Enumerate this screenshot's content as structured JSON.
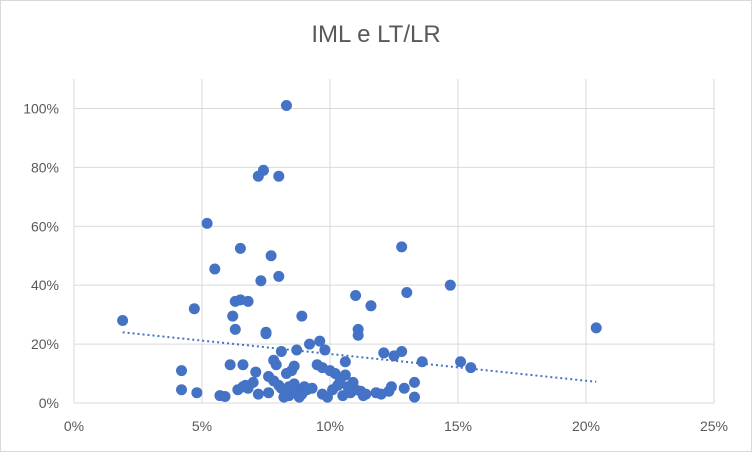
{
  "chart_data": {
    "type": "scatter",
    "title": "IML e LT/LR",
    "xlabel": "",
    "ylabel": "",
    "xlim": [
      0,
      0.25
    ],
    "ylim": [
      0,
      1.1
    ],
    "grid": {
      "x": true,
      "y": true
    },
    "legend": "none",
    "x_ticks": [
      0,
      0.05,
      0.1,
      0.15,
      0.2,
      0.25
    ],
    "x_tick_labels": [
      "0%",
      "5%",
      "10%",
      "15%",
      "20%",
      "25%"
    ],
    "y_ticks": [
      0,
      0.2,
      0.4,
      0.6,
      0.8,
      1.0
    ],
    "y_tick_labels": [
      "0%",
      "20%",
      "40%",
      "60%",
      "80%",
      "100%"
    ],
    "colors": {
      "points": "#4472c4",
      "trendline": "#4472c4",
      "grid": "#d9d9d9",
      "text": "#595959"
    },
    "trendline": {
      "style": "dotted",
      "type": "linear",
      "x": [
        0.019,
        0.204
      ],
      "y": [
        0.24,
        0.072
      ]
    },
    "series": [
      {
        "points": [
          [
            0.019,
            0.28
          ],
          [
            0.042,
            0.11
          ],
          [
            0.042,
            0.045
          ],
          [
            0.047,
            0.32
          ],
          [
            0.048,
            0.035
          ],
          [
            0.052,
            0.61
          ],
          [
            0.055,
            0.455
          ],
          [
            0.057,
            0.025
          ],
          [
            0.059,
            0.022
          ],
          [
            0.061,
            0.13
          ],
          [
            0.062,
            0.295
          ],
          [
            0.063,
            0.25
          ],
          [
            0.063,
            0.345
          ],
          [
            0.064,
            0.045
          ],
          [
            0.065,
            0.35
          ],
          [
            0.065,
            0.525
          ],
          [
            0.066,
            0.055
          ],
          [
            0.066,
            0.13
          ],
          [
            0.067,
            0.06
          ],
          [
            0.068,
            0.345
          ],
          [
            0.068,
            0.05
          ],
          [
            0.07,
            0.07
          ],
          [
            0.071,
            0.105
          ],
          [
            0.072,
            0.77
          ],
          [
            0.072,
            0.03
          ],
          [
            0.073,
            0.415
          ],
          [
            0.074,
            0.79
          ],
          [
            0.075,
            0.24
          ],
          [
            0.075,
            0.235
          ],
          [
            0.076,
            0.09
          ],
          [
            0.076,
            0.035
          ],
          [
            0.077,
            0.5
          ],
          [
            0.078,
            0.145
          ],
          [
            0.078,
            0.075
          ],
          [
            0.079,
            0.13
          ],
          [
            0.08,
            0.43
          ],
          [
            0.08,
            0.77
          ],
          [
            0.08,
            0.06
          ],
          [
            0.081,
            0.05
          ],
          [
            0.081,
            0.175
          ],
          [
            0.082,
            0.02
          ],
          [
            0.083,
            1.01
          ],
          [
            0.083,
            0.1
          ],
          [
            0.083,
            0.04
          ],
          [
            0.084,
            0.055
          ],
          [
            0.084,
            0.025
          ],
          [
            0.085,
            0.11
          ],
          [
            0.086,
            0.125
          ],
          [
            0.086,
            0.065
          ],
          [
            0.087,
            0.035
          ],
          [
            0.087,
            0.18
          ],
          [
            0.088,
            0.02
          ],
          [
            0.088,
            0.045
          ],
          [
            0.089,
            0.295
          ],
          [
            0.089,
            0.03
          ],
          [
            0.09,
            0.055
          ],
          [
            0.091,
            0.045
          ],
          [
            0.092,
            0.2
          ],
          [
            0.093,
            0.05
          ],
          [
            0.095,
            0.13
          ],
          [
            0.096,
            0.21
          ],
          [
            0.097,
            0.12
          ],
          [
            0.097,
            0.03
          ],
          [
            0.098,
            0.18
          ],
          [
            0.099,
            0.02
          ],
          [
            0.1,
            0.11
          ],
          [
            0.101,
            0.045
          ],
          [
            0.102,
            0.1
          ],
          [
            0.103,
            0.06
          ],
          [
            0.104,
            0.08
          ],
          [
            0.105,
            0.025
          ],
          [
            0.106,
            0.14
          ],
          [
            0.106,
            0.095
          ],
          [
            0.107,
            0.055
          ],
          [
            0.108,
            0.035
          ],
          [
            0.109,
            0.07
          ],
          [
            0.11,
            0.045
          ],
          [
            0.11,
            0.365
          ],
          [
            0.111,
            0.25
          ],
          [
            0.111,
            0.23
          ],
          [
            0.112,
            0.04
          ],
          [
            0.113,
            0.025
          ],
          [
            0.114,
            0.03
          ],
          [
            0.116,
            0.33
          ],
          [
            0.118,
            0.035
          ],
          [
            0.12,
            0.03
          ],
          [
            0.121,
            0.17
          ],
          [
            0.123,
            0.04
          ],
          [
            0.124,
            0.055
          ],
          [
            0.125,
            0.16
          ],
          [
            0.128,
            0.53
          ],
          [
            0.128,
            0.175
          ],
          [
            0.129,
            0.05
          ],
          [
            0.13,
            0.375
          ],
          [
            0.133,
            0.07
          ],
          [
            0.133,
            0.02
          ],
          [
            0.136,
            0.14
          ],
          [
            0.147,
            0.4
          ],
          [
            0.151,
            0.14
          ],
          [
            0.155,
            0.12
          ],
          [
            0.204,
            0.255
          ]
        ]
      }
    ]
  }
}
